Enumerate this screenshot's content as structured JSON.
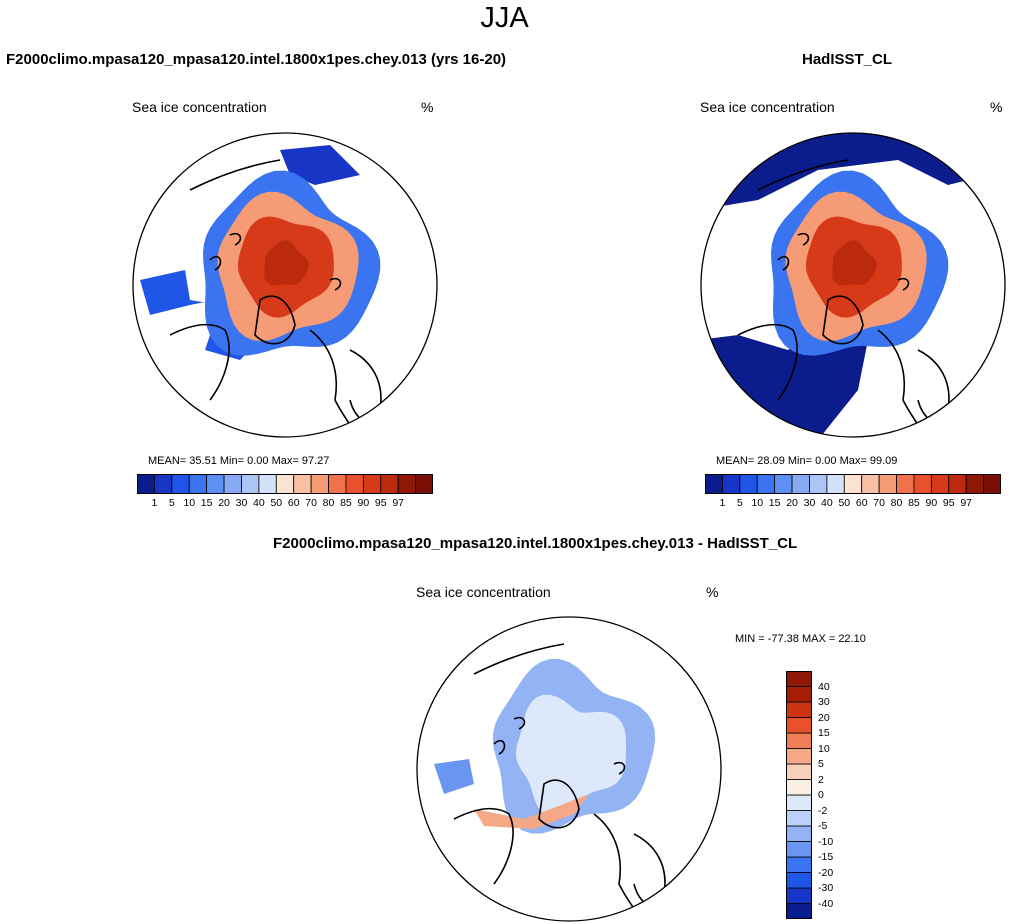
{
  "title": "JJA",
  "colors": {
    "seq_palette": [
      "#0b1d8c",
      "#1736c6",
      "#1f56e8",
      "#3a74f0",
      "#5e8ff2",
      "#86abf4",
      "#abc5f7",
      "#d3e1fb",
      "#fbe3d2",
      "#f8c1a4",
      "#f59b76",
      "#f0734d",
      "#e8512b",
      "#d73a18",
      "#bb2a0c",
      "#8e1706",
      "#7a0e04"
    ],
    "diff_palette": [
      "#0b1d8c",
      "#1736c6",
      "#1f56e8",
      "#3a74f0",
      "#6a96f1",
      "#93b3f5",
      "#bcd0f9",
      "#dde8fb",
      "#fbeee4",
      "#f8d0b7",
      "#f5a885",
      "#f07f56",
      "#e8512b",
      "#c93512",
      "#a61d06",
      "#8e1706"
    ],
    "land_outline": "#000000"
  },
  "chart_data": [
    {
      "type": "heatmap",
      "name": "model",
      "title": "F2000climo.mpasa120_mpasa120.intel.1800x1pes.chey.013 (yrs 16-20)",
      "subtitle_left": "Sea ice concentration",
      "subtitle_right": "%",
      "stats": {
        "mean_label": "MEAN=",
        "mean": "35.51",
        "min_label": "Min=",
        "min": "0.00",
        "max_label": "Max=",
        "max": "97.27"
      },
      "colorbar": {
        "orientation": "horizontal",
        "levels": [
          1,
          5,
          10,
          15,
          20,
          30,
          40,
          50,
          60,
          70,
          80,
          85,
          90,
          95,
          97
        ]
      },
      "projection": "north-polar-stereographic"
    },
    {
      "type": "heatmap",
      "name": "obs",
      "title": "HadISST_CL",
      "subtitle_left": "Sea ice concentration",
      "subtitle_right": "%",
      "stats": {
        "mean_label": "MEAN=",
        "mean": "28.09",
        "min_label": "Min=",
        "min": "0.00",
        "max_label": "Max=",
        "max": "99.09"
      },
      "colorbar": {
        "orientation": "horizontal",
        "levels": [
          1,
          5,
          10,
          15,
          20,
          30,
          40,
          50,
          60,
          70,
          80,
          85,
          90,
          95,
          97
        ]
      },
      "projection": "north-polar-stereographic"
    },
    {
      "type": "heatmap",
      "name": "difference",
      "title": "F2000climo.mpasa120_mpasa120.intel.1800x1pes.chey.013 - HadISST_CL",
      "subtitle_left": "Sea ice concentration",
      "subtitle_right": "%",
      "stats_text": "MIN = -77.38 MAX =  22.10",
      "colorbar": {
        "orientation": "vertical",
        "levels": [
          -40,
          -30,
          -20,
          -15,
          -10,
          -5,
          -2,
          0,
          2,
          5,
          10,
          15,
          20,
          30,
          40
        ]
      },
      "projection": "north-polar-stereographic"
    }
  ]
}
